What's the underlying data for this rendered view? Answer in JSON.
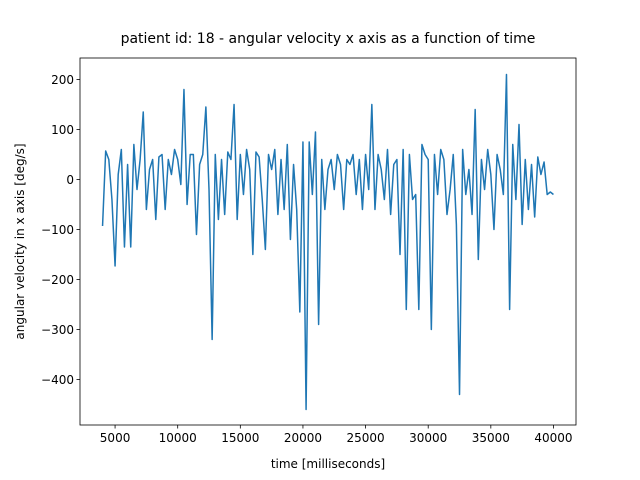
{
  "chart_data": {
    "type": "line",
    "title": "patient id: 18 - angular velocity x axis as a function of time",
    "x_label": "time [milliseconds]",
    "y_label": "angular velocity in x axis [deg/s]",
    "color": "#1f77b4",
    "xlim": [
      2200,
      41800
    ],
    "ylim": [
      -491,
      243
    ],
    "xticks": [
      5000,
      10000,
      15000,
      20000,
      25000,
      30000,
      35000,
      40000
    ],
    "yticks": [
      {
        "value": -400,
        "label": "−400"
      },
      {
        "value": -300,
        "label": "−300"
      },
      {
        "value": -200,
        "label": "−200"
      },
      {
        "value": -100,
        "label": "−100"
      },
      0,
      100,
      200
    ],
    "x": [
      4000,
      4250,
      4500,
      4750,
      5000,
      5250,
      5500,
      5750,
      6000,
      6250,
      6500,
      6750,
      7000,
      7250,
      7500,
      7750,
      8000,
      8250,
      8500,
      8750,
      9000,
      9250,
      9500,
      9750,
      10000,
      10250,
      10500,
      10750,
      11000,
      11250,
      11500,
      11750,
      12000,
      12250,
      12500,
      12750,
      13000,
      13250,
      13500,
      13750,
      14000,
      14250,
      14500,
      14750,
      15000,
      15250,
      15500,
      15750,
      16000,
      16250,
      16500,
      16750,
      17000,
      17250,
      17500,
      17750,
      18000,
      18250,
      18500,
      18750,
      19000,
      19250,
      19500,
      19750,
      20000,
      20250,
      20500,
      20750,
      21000,
      21250,
      21500,
      21750,
      22000,
      22250,
      22500,
      22750,
      23000,
      23250,
      23500,
      23750,
      24000,
      24250,
      24500,
      24750,
      25000,
      25250,
      25500,
      25750,
      26000,
      26250,
      26500,
      26750,
      27000,
      27250,
      27500,
      27750,
      28000,
      28250,
      28500,
      28750,
      29000,
      29250,
      29500,
      29750,
      30000,
      30250,
      30500,
      30750,
      31000,
      31250,
      31500,
      31750,
      32000,
      32250,
      32500,
      32750,
      33000,
      33250,
      33500,
      33750,
      34000,
      34250,
      34500,
      34750,
      35000,
      35250,
      35500,
      35750,
      36000,
      36250,
      36500,
      36750,
      37000,
      37250,
      37500,
      37750,
      38000,
      38250,
      38500,
      38750,
      39000,
      39250,
      39500,
      39750,
      40000
    ],
    "values": [
      -93,
      57,
      40,
      -40,
      -173,
      10,
      60,
      -135,
      30,
      -135,
      70,
      -20,
      40,
      135,
      -60,
      20,
      40,
      -80,
      45,
      50,
      -60,
      40,
      10,
      60,
      40,
      -10,
      180,
      -50,
      50,
      50,
      -110,
      30,
      50,
      145,
      -20,
      -320,
      50,
      -80,
      40,
      -70,
      55,
      40,
      150,
      -80,
      50,
      -30,
      60,
      20,
      -150,
      55,
      45,
      -40,
      -140,
      50,
      20,
      60,
      -70,
      40,
      -60,
      70,
      -120,
      30,
      -60,
      -265,
      75,
      -460,
      75,
      -30,
      95,
      -290,
      40,
      -60,
      20,
      40,
      -20,
      50,
      30,
      -60,
      40,
      30,
      50,
      -30,
      40,
      -60,
      50,
      -20,
      150,
      -60,
      50,
      20,
      -40,
      60,
      -70,
      30,
      40,
      -150,
      60,
      -260,
      50,
      -40,
      -30,
      -260,
      70,
      50,
      40,
      -300,
      50,
      -30,
      60,
      40,
      -70,
      -20,
      50,
      -90,
      -430,
      60,
      -30,
      20,
      -70,
      140,
      -160,
      40,
      -20,
      60,
      10,
      -100,
      50,
      20,
      -30,
      210,
      -260,
      70,
      -40,
      110,
      -90,
      40,
      -60,
      30,
      -75,
      45,
      10,
      35,
      -30,
      -25,
      -30
    ]
  }
}
